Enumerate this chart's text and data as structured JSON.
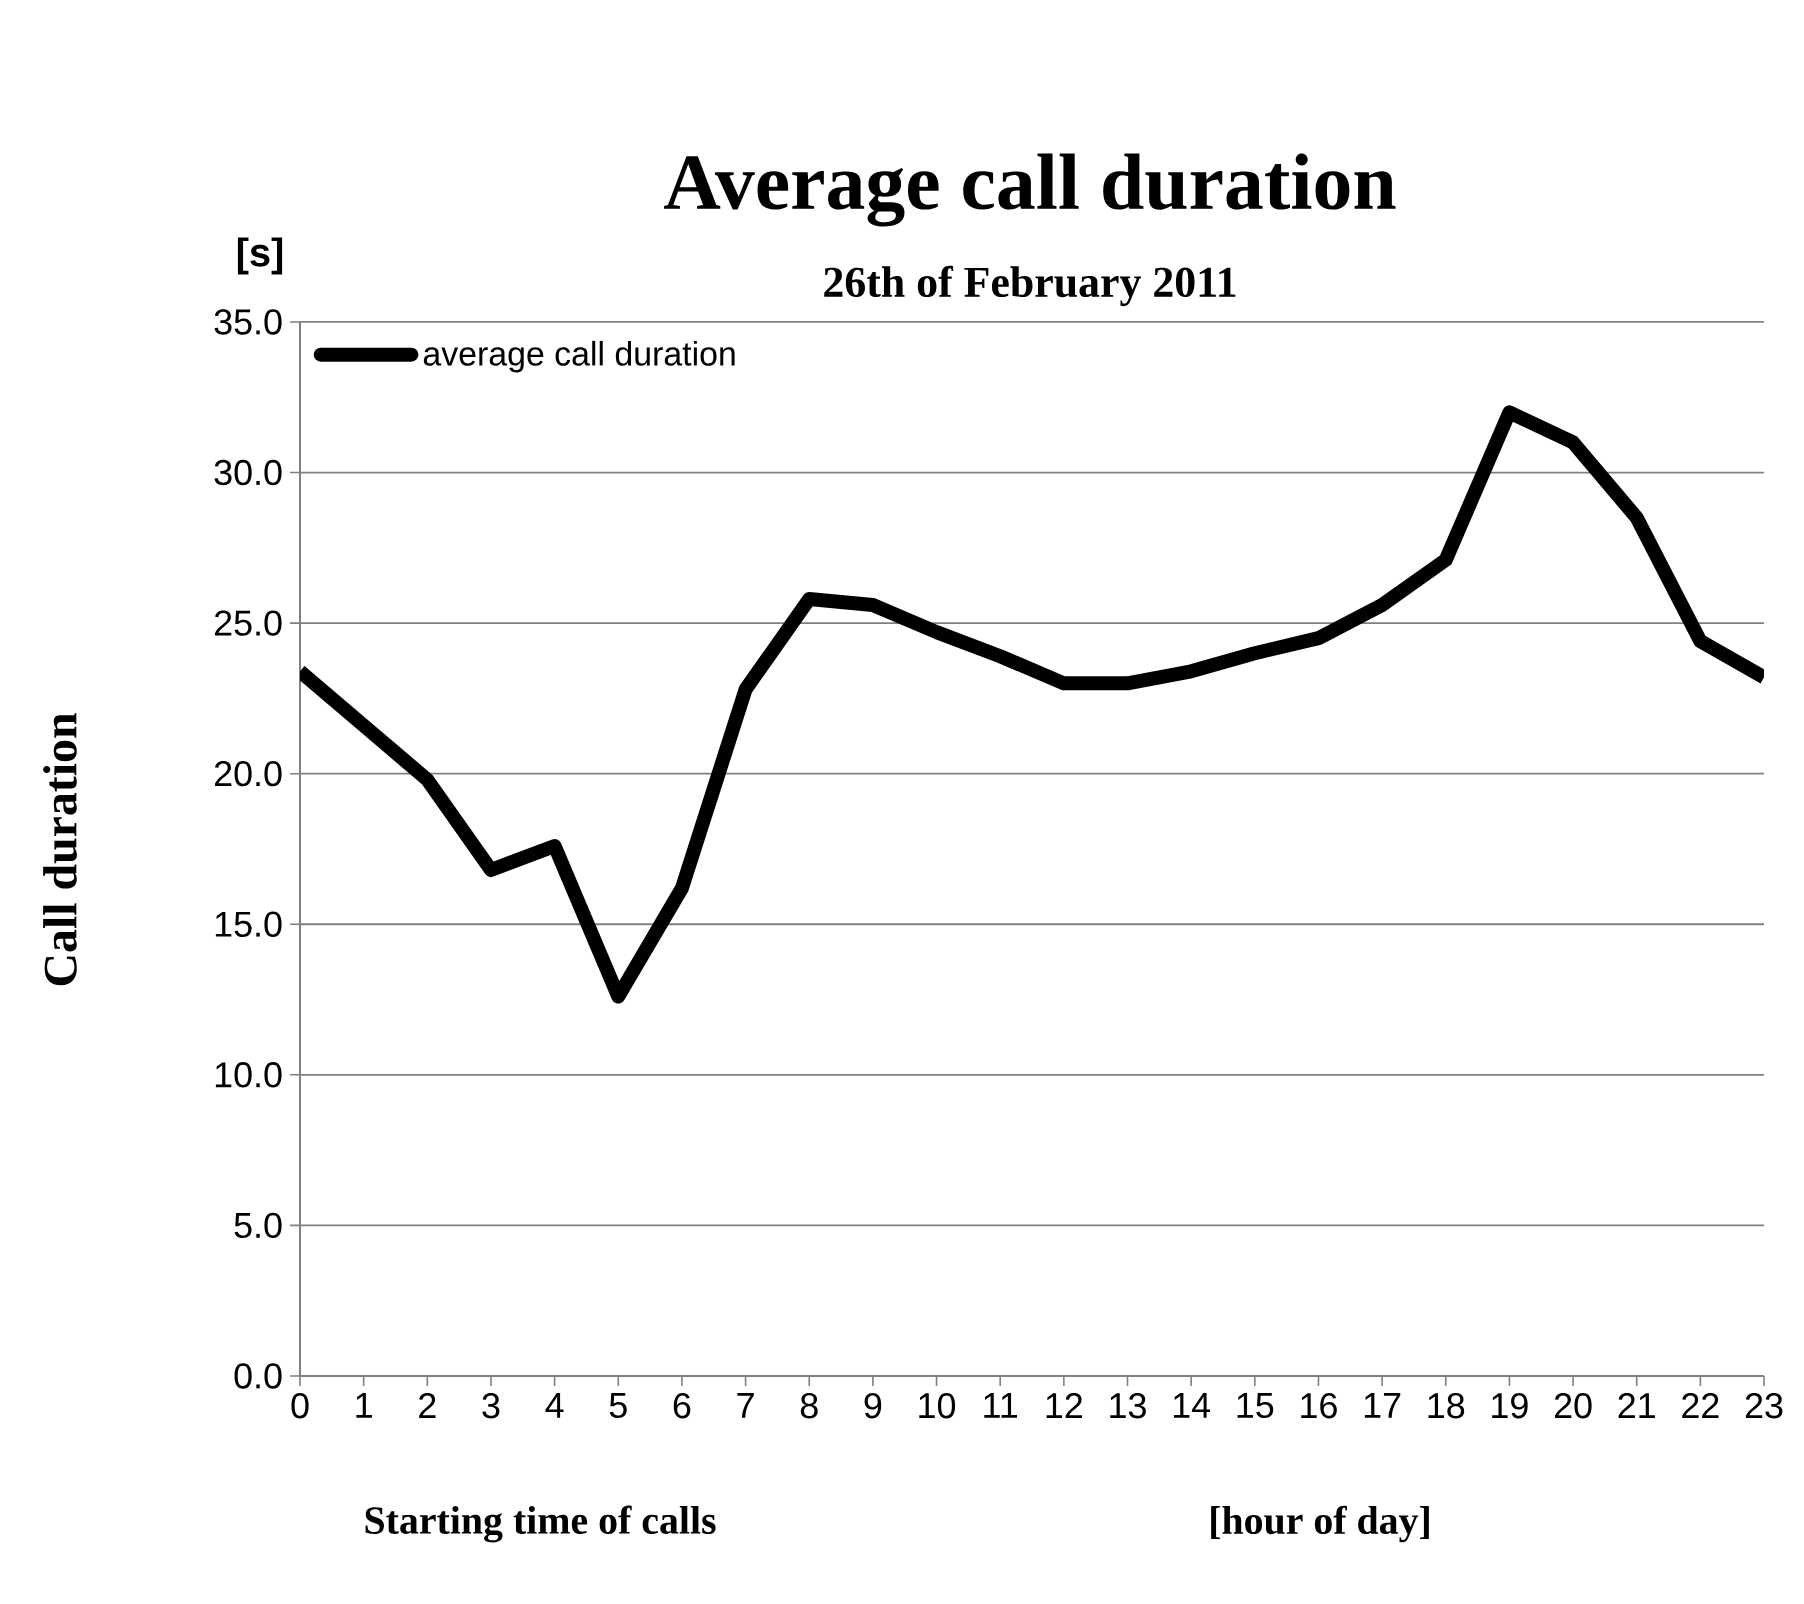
{
  "chart_data": {
    "type": "line",
    "title": "Average call duration",
    "subtitle": "26th of February 2011",
    "xlabel": "Starting time of calls",
    "ylabel": "Call duration",
    "annotations": [
      "[s]",
      "[hour of day]"
    ],
    "x": [
      0,
      1,
      2,
      3,
      4,
      5,
      6,
      7,
      8,
      9,
      10,
      11,
      12,
      13,
      14,
      15,
      16,
      17,
      18,
      19,
      20,
      21,
      22,
      23
    ],
    "series": [
      {
        "name": "average call duration",
        "color": "#000000",
        "values": [
          23.4,
          21.6,
          19.8,
          16.8,
          17.6,
          12.6,
          16.2,
          22.8,
          25.8,
          25.6,
          24.7,
          23.9,
          23.0,
          23.0,
          23.4,
          24.0,
          24.5,
          25.6,
          27.1,
          32.0,
          31.0,
          28.5,
          24.4,
          23.2
        ]
      }
    ],
    "xlim": [
      0,
      23
    ],
    "xticks": [
      0,
      1,
      2,
      3,
      4,
      5,
      6,
      7,
      8,
      9,
      10,
      11,
      12,
      13,
      14,
      15,
      16,
      17,
      18,
      19,
      20,
      21,
      22,
      23
    ],
    "ylim": [
      0,
      35
    ],
    "yticks": [
      {
        "value": 0,
        "label": "0.0"
      },
      {
        "value": 5,
        "label": "5.0"
      },
      {
        "value": 10,
        "label": "10.0"
      },
      {
        "value": 15,
        "label": "15.0"
      },
      {
        "value": 20,
        "label": "20.0"
      },
      {
        "value": 25,
        "label": "25.0"
      },
      {
        "value": 30,
        "label": "30.0"
      },
      {
        "value": 35,
        "label": "35.0"
      }
    ],
    "grid": "y",
    "legend": "top left",
    "marker": "none",
    "line_style": "solid"
  }
}
